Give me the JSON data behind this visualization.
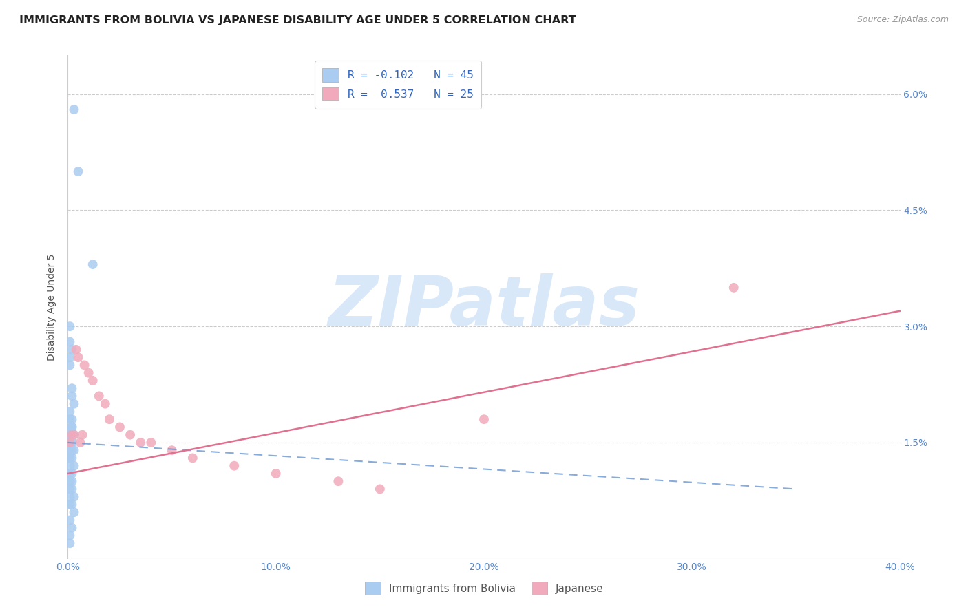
{
  "title": "IMMIGRANTS FROM BOLIVIA VS JAPANESE DISABILITY AGE UNDER 5 CORRELATION CHART",
  "source": "Source: ZipAtlas.com",
  "ylabel": "Disability Age Under 5",
  "xmin": 0.0,
  "xmax": 0.4,
  "ymin": 0.0,
  "ymax": 0.065,
  "yticks": [
    0.015,
    0.03,
    0.045,
    0.06
  ],
  "ytick_labels_right": [
    "1.5%",
    "3.0%",
    "4.5%",
    "6.0%"
  ],
  "xticks": [
    0.0,
    0.1,
    0.2,
    0.3,
    0.4
  ],
  "xtick_labels": [
    "0.0%",
    "10.0%",
    "20.0%",
    "30.0%",
    "40.0%"
  ],
  "legend_entries": [
    {
      "label": "R = -0.102   N = 45",
      "color": "#aaccf0"
    },
    {
      "label": "R =  0.537   N = 25",
      "color": "#f0aabb"
    }
  ],
  "bolivia_scatter_x": [
    0.003,
    0.005,
    0.012,
    0.001,
    0.001,
    0.002,
    0.001,
    0.001,
    0.002,
    0.002,
    0.003,
    0.001,
    0.002,
    0.001,
    0.002,
    0.002,
    0.001,
    0.003,
    0.001,
    0.002,
    0.001,
    0.002,
    0.001,
    0.003,
    0.002,
    0.001,
    0.002,
    0.001,
    0.003,
    0.001,
    0.002,
    0.001,
    0.002,
    0.001,
    0.002,
    0.001,
    0.003,
    0.001,
    0.002,
    0.001,
    0.003,
    0.001,
    0.002,
    0.001,
    0.001
  ],
  "bolivia_scatter_y": [
    0.058,
    0.05,
    0.038,
    0.03,
    0.028,
    0.027,
    0.026,
    0.025,
    0.022,
    0.021,
    0.02,
    0.019,
    0.018,
    0.018,
    0.017,
    0.017,
    0.016,
    0.016,
    0.016,
    0.015,
    0.015,
    0.015,
    0.014,
    0.014,
    0.014,
    0.013,
    0.013,
    0.013,
    0.012,
    0.012,
    0.011,
    0.011,
    0.01,
    0.01,
    0.009,
    0.009,
    0.008,
    0.008,
    0.007,
    0.007,
    0.006,
    0.005,
    0.004,
    0.003,
    0.002
  ],
  "japanese_scatter_x": [
    0.001,
    0.002,
    0.003,
    0.004,
    0.005,
    0.006,
    0.007,
    0.008,
    0.01,
    0.012,
    0.015,
    0.018,
    0.02,
    0.025,
    0.03,
    0.035,
    0.04,
    0.05,
    0.06,
    0.08,
    0.1,
    0.13,
    0.15,
    0.2,
    0.32
  ],
  "japanese_scatter_y": [
    0.015,
    0.016,
    0.016,
    0.027,
    0.026,
    0.015,
    0.016,
    0.025,
    0.024,
    0.023,
    0.021,
    0.02,
    0.018,
    0.017,
    0.016,
    0.015,
    0.015,
    0.014,
    0.013,
    0.012,
    0.011,
    0.01,
    0.009,
    0.018,
    0.035
  ],
  "bolivia_line_x": [
    0.0,
    0.35
  ],
  "bolivia_line_y": [
    0.015,
    0.009
  ],
  "japanese_line_x": [
    0.0,
    0.4
  ],
  "japanese_line_y": [
    0.011,
    0.032
  ],
  "scatter_size": 100,
  "bolivia_color": "#aaccf0",
  "japanese_color": "#f0aabb",
  "bolivia_line_color": "#5588cc",
  "japanese_line_color": "#e07090",
  "background_color": "#ffffff",
  "grid_color": "#cccccc",
  "title_fontsize": 11.5,
  "label_fontsize": 10,
  "tick_fontsize": 10,
  "right_tick_color": "#5588cc",
  "watermark_text": "ZIPatlas",
  "watermark_color": "#d8e8f8",
  "watermark_fontsize": 72
}
